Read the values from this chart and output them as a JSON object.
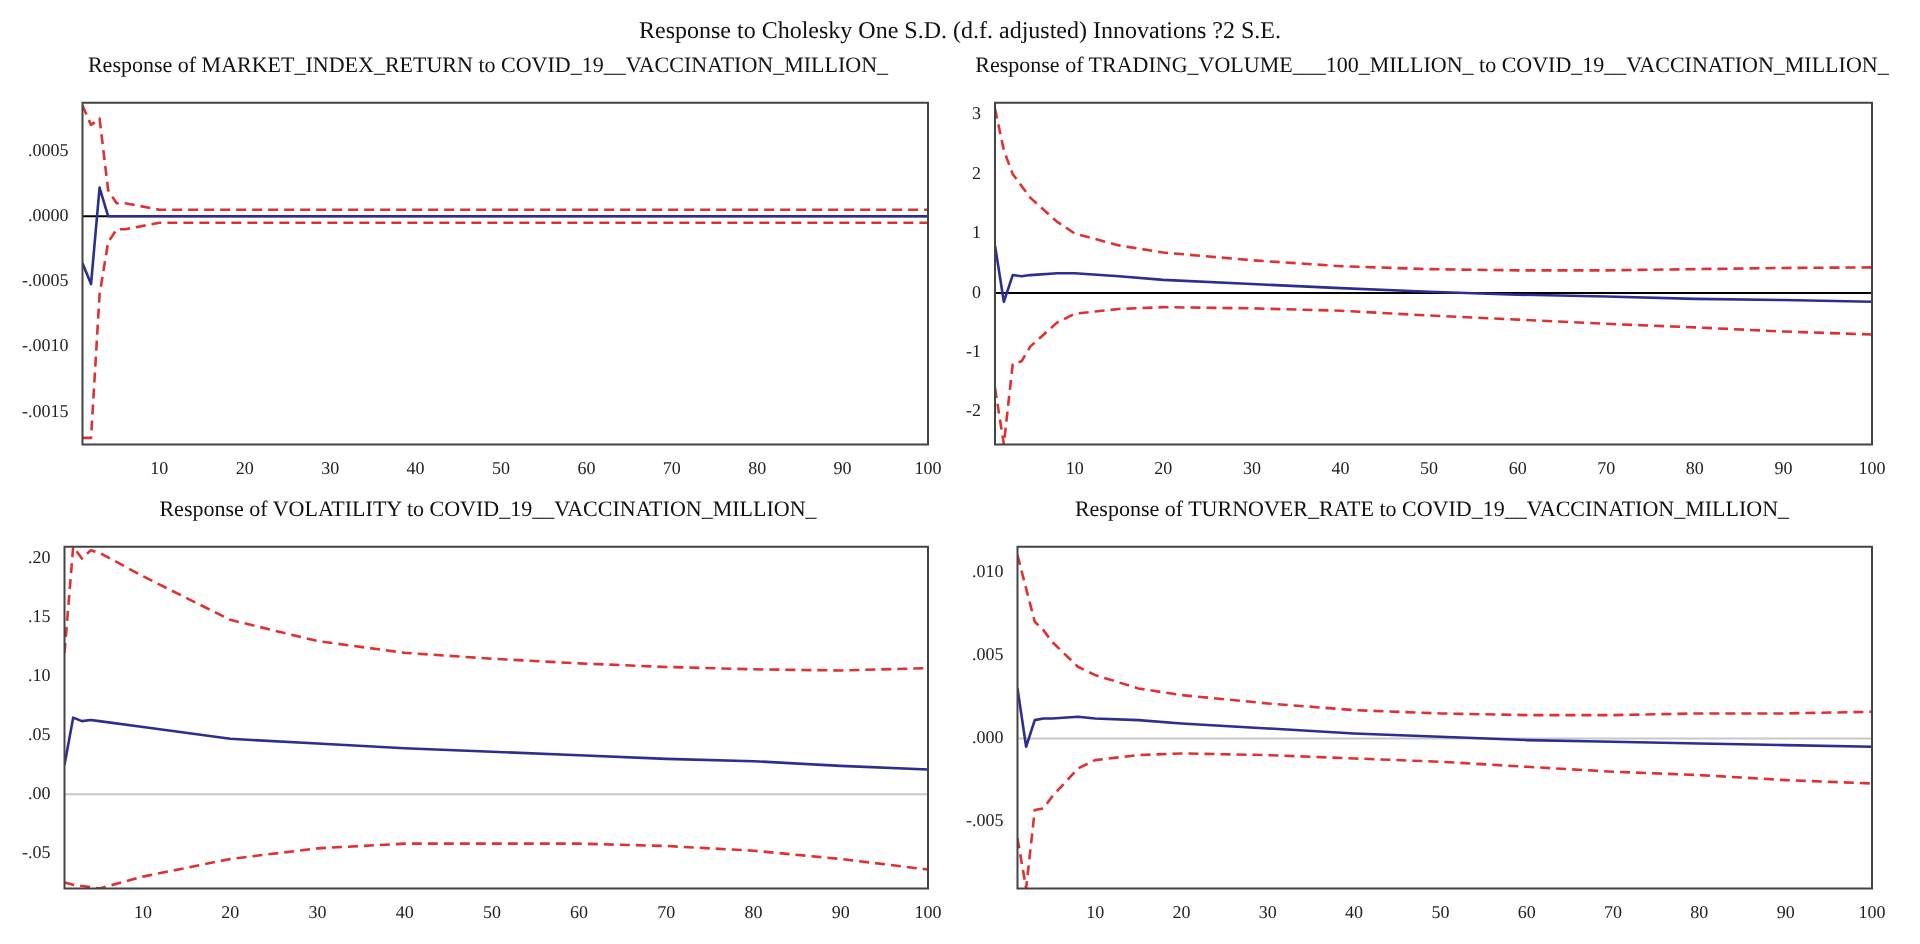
{
  "chart_data": [
    {
      "type": "line",
      "title": "Response to Cholesky One S.D. (d.f. adjusted) Innovations ?2 S.E.",
      "subtitle": "Response of MARKET_INDEX_RETURN to COVID_19__VACCINATION_MILLION_",
      "x": [
        1,
        2,
        3,
        4,
        5,
        6,
        10,
        20,
        30,
        40,
        50,
        60,
        70,
        80,
        90,
        100
      ],
      "xlim": [
        1,
        100
      ],
      "xticks": [
        10,
        20,
        30,
        40,
        50,
        60,
        70,
        80,
        90,
        100
      ],
      "ylim": [
        -0.00175,
        0.00087
      ],
      "yticks": [
        {
          "value": -0.0015,
          "label": "-.0015"
        },
        {
          "value": -0.001,
          "label": "-.0010"
        },
        {
          "value": -0.0005,
          "label": "-.0005"
        },
        {
          "value": 0,
          "label": ".0000"
        },
        {
          "value": 0.0005,
          "label": ".0005"
        }
      ],
      "grid": false,
      "ref_lines": [
        {
          "axis": "y",
          "value": 0,
          "color": "#000000"
        }
      ],
      "series": [
        {
          "color": "#2b2f8f",
          "line_style": "solid",
          "values": [
            -0.00036,
            -0.00052,
            0.00022,
            0,
            0,
            0,
            0,
            0,
            0,
            0,
            0,
            0,
            0,
            0,
            0,
            0
          ]
        },
        {
          "color": "#e0312f",
          "line_style": "dashed",
          "values": [
            0.00085,
            0.0007,
            0.00075,
            0.0002,
            0.0001,
            0.0001,
            5e-05,
            5e-05,
            5e-05,
            5e-05,
            5e-05,
            5e-05,
            5e-05,
            5e-05,
            5e-05,
            5e-05
          ]
        },
        {
          "color": "#e0312f",
          "line_style": "dashed",
          "values": [
            -0.0017,
            -0.0017,
            -0.0006,
            -0.0002,
            -0.0001,
            -0.0001,
            -5e-05,
            -5e-05,
            -5e-05,
            -5e-05,
            -5e-05,
            -5e-05,
            -5e-05,
            -5e-05,
            -5e-05,
            -5e-05
          ]
        }
      ]
    },
    {
      "type": "line",
      "title": "Response of TRADING_VOLUME___100_MILLION_ to COVID_19__VACCINATION_MILLION_",
      "x": [
        1,
        2,
        3,
        4,
        5,
        8,
        10,
        15,
        20,
        30,
        40,
        50,
        60,
        70,
        80,
        90,
        100
      ],
      "xlim": [
        1,
        100
      ],
      "xticks": [
        10,
        20,
        30,
        40,
        50,
        60,
        70,
        80,
        90,
        100
      ],
      "ylim": [
        -2.55,
        3.2
      ],
      "yticks": [
        -2,
        -1,
        0,
        1,
        2,
        3
      ],
      "grid": false,
      "ref_lines": [
        {
          "axis": "y",
          "value": 0,
          "color": "#000000"
        }
      ],
      "series": [
        {
          "color": "#2b2f8f",
          "line_style": "solid",
          "values": [
            0.8,
            -0.15,
            0.3,
            0.28,
            0.3,
            0.33,
            0.33,
            0.28,
            0.22,
            0.15,
            0.08,
            0.02,
            -0.03,
            -0.06,
            -0.1,
            -0.12,
            -0.15
          ]
        },
        {
          "color": "#e0312f",
          "line_style": "dashed",
          "values": [
            3.1,
            2.4,
            2.0,
            1.8,
            1.6,
            1.2,
            1.0,
            0.8,
            0.68,
            0.55,
            0.45,
            0.4,
            0.38,
            0.38,
            0.4,
            0.42,
            0.43
          ]
        },
        {
          "color": "#e0312f",
          "line_style": "dashed",
          "values": [
            -1.6,
            -2.55,
            -1.2,
            -1.15,
            -0.9,
            -0.5,
            -0.35,
            -0.27,
            -0.24,
            -0.26,
            -0.3,
            -0.38,
            -0.45,
            -0.52,
            -0.58,
            -0.65,
            -0.7
          ]
        }
      ]
    },
    {
      "type": "line",
      "title": "Response of VOLATILITY to COVID_19__VACCINATION_MILLION_",
      "x": [
        1,
        2,
        3,
        4,
        5,
        10,
        20,
        30,
        40,
        50,
        60,
        70,
        80,
        90,
        100
      ],
      "xlim": [
        1,
        100
      ],
      "xticks": [
        10,
        20,
        30,
        40,
        50,
        60,
        70,
        80,
        90,
        100
      ],
      "ylim": [
        -0.08,
        0.21
      ],
      "yticks": [
        {
          "value": -0.05,
          "label": "-.05"
        },
        {
          "value": 0,
          "label": ".00"
        },
        {
          "value": 0.05,
          "label": ".05"
        },
        {
          "value": 0.1,
          "label": ".10"
        },
        {
          "value": 0.15,
          "label": ".15"
        },
        {
          "value": 0.2,
          "label": ".20"
        }
      ],
      "grid": false,
      "ref_lines": [
        {
          "axis": "y",
          "value": 0,
          "color": "#c8c8c8"
        }
      ],
      "series": [
        {
          "color": "#2b2f8f",
          "line_style": "solid",
          "values": [
            0.025,
            0.065,
            0.062,
            0.063,
            0.062,
            0.057,
            0.047,
            0.043,
            0.039,
            0.036,
            0.033,
            0.03,
            0.028,
            0.024,
            0.021
          ]
        },
        {
          "color": "#e0312f",
          "line_style": "dashed",
          "values": [
            0.12,
            0.21,
            0.2,
            0.207,
            0.205,
            0.185,
            0.148,
            0.13,
            0.12,
            0.115,
            0.111,
            0.108,
            0.106,
            0.105,
            0.107
          ]
        },
        {
          "color": "#e0312f",
          "line_style": "dashed",
          "values": [
            -0.075,
            -0.077,
            -0.078,
            -0.079,
            -0.08,
            -0.07,
            -0.055,
            -0.046,
            -0.042,
            -0.042,
            -0.042,
            -0.044,
            -0.048,
            -0.055,
            -0.064
          ]
        }
      ]
    },
    {
      "type": "line",
      "title": "Response of TURNOVER_RATE to COVID_19__VACCINATION_MILLION_",
      "x": [
        1,
        2,
        3,
        4,
        5,
        8,
        10,
        15,
        20,
        30,
        40,
        50,
        60,
        70,
        80,
        90,
        100
      ],
      "xlim": [
        1,
        100
      ],
      "xticks": [
        10,
        20,
        30,
        40,
        50,
        60,
        70,
        80,
        90,
        100
      ],
      "ylim": [
        -0.009,
        0.0115
      ],
      "yticks": [
        {
          "value": -0.005,
          "label": "-.005"
        },
        {
          "value": 0,
          "label": ".000"
        },
        {
          "value": 0.005,
          "label": ".005"
        },
        {
          "value": 0.01,
          "label": ".010"
        }
      ],
      "grid": false,
      "ref_lines": [
        {
          "axis": "y",
          "value": 0,
          "color": "#c8c8c8"
        }
      ],
      "series": [
        {
          "color": "#2b2f8f",
          "line_style": "solid",
          "values": [
            0.003,
            -0.0005,
            0.0011,
            0.0012,
            0.0012,
            0.0013,
            0.0012,
            0.0011,
            0.0009,
            0.0006,
            0.0003,
            0.0001,
            -0.0001,
            -0.0002,
            -0.0003,
            -0.0004,
            -0.0005
          ]
        },
        {
          "color": "#e0312f",
          "line_style": "dashed",
          "values": [
            0.011,
            0.009,
            0.007,
            0.0065,
            0.0058,
            0.0043,
            0.0038,
            0.003,
            0.0026,
            0.0021,
            0.0017,
            0.0015,
            0.0014,
            0.0014,
            0.0015,
            0.0015,
            0.0016
          ]
        },
        {
          "color": "#e0312f",
          "line_style": "dashed",
          "values": [
            -0.006,
            -0.009,
            -0.0043,
            -0.0042,
            -0.0035,
            -0.0018,
            -0.0013,
            -0.001,
            -0.0009,
            -0.001,
            -0.0012,
            -0.0014,
            -0.0017,
            -0.002,
            -0.0022,
            -0.0025,
            -0.0027
          ]
        }
      ]
    }
  ]
}
